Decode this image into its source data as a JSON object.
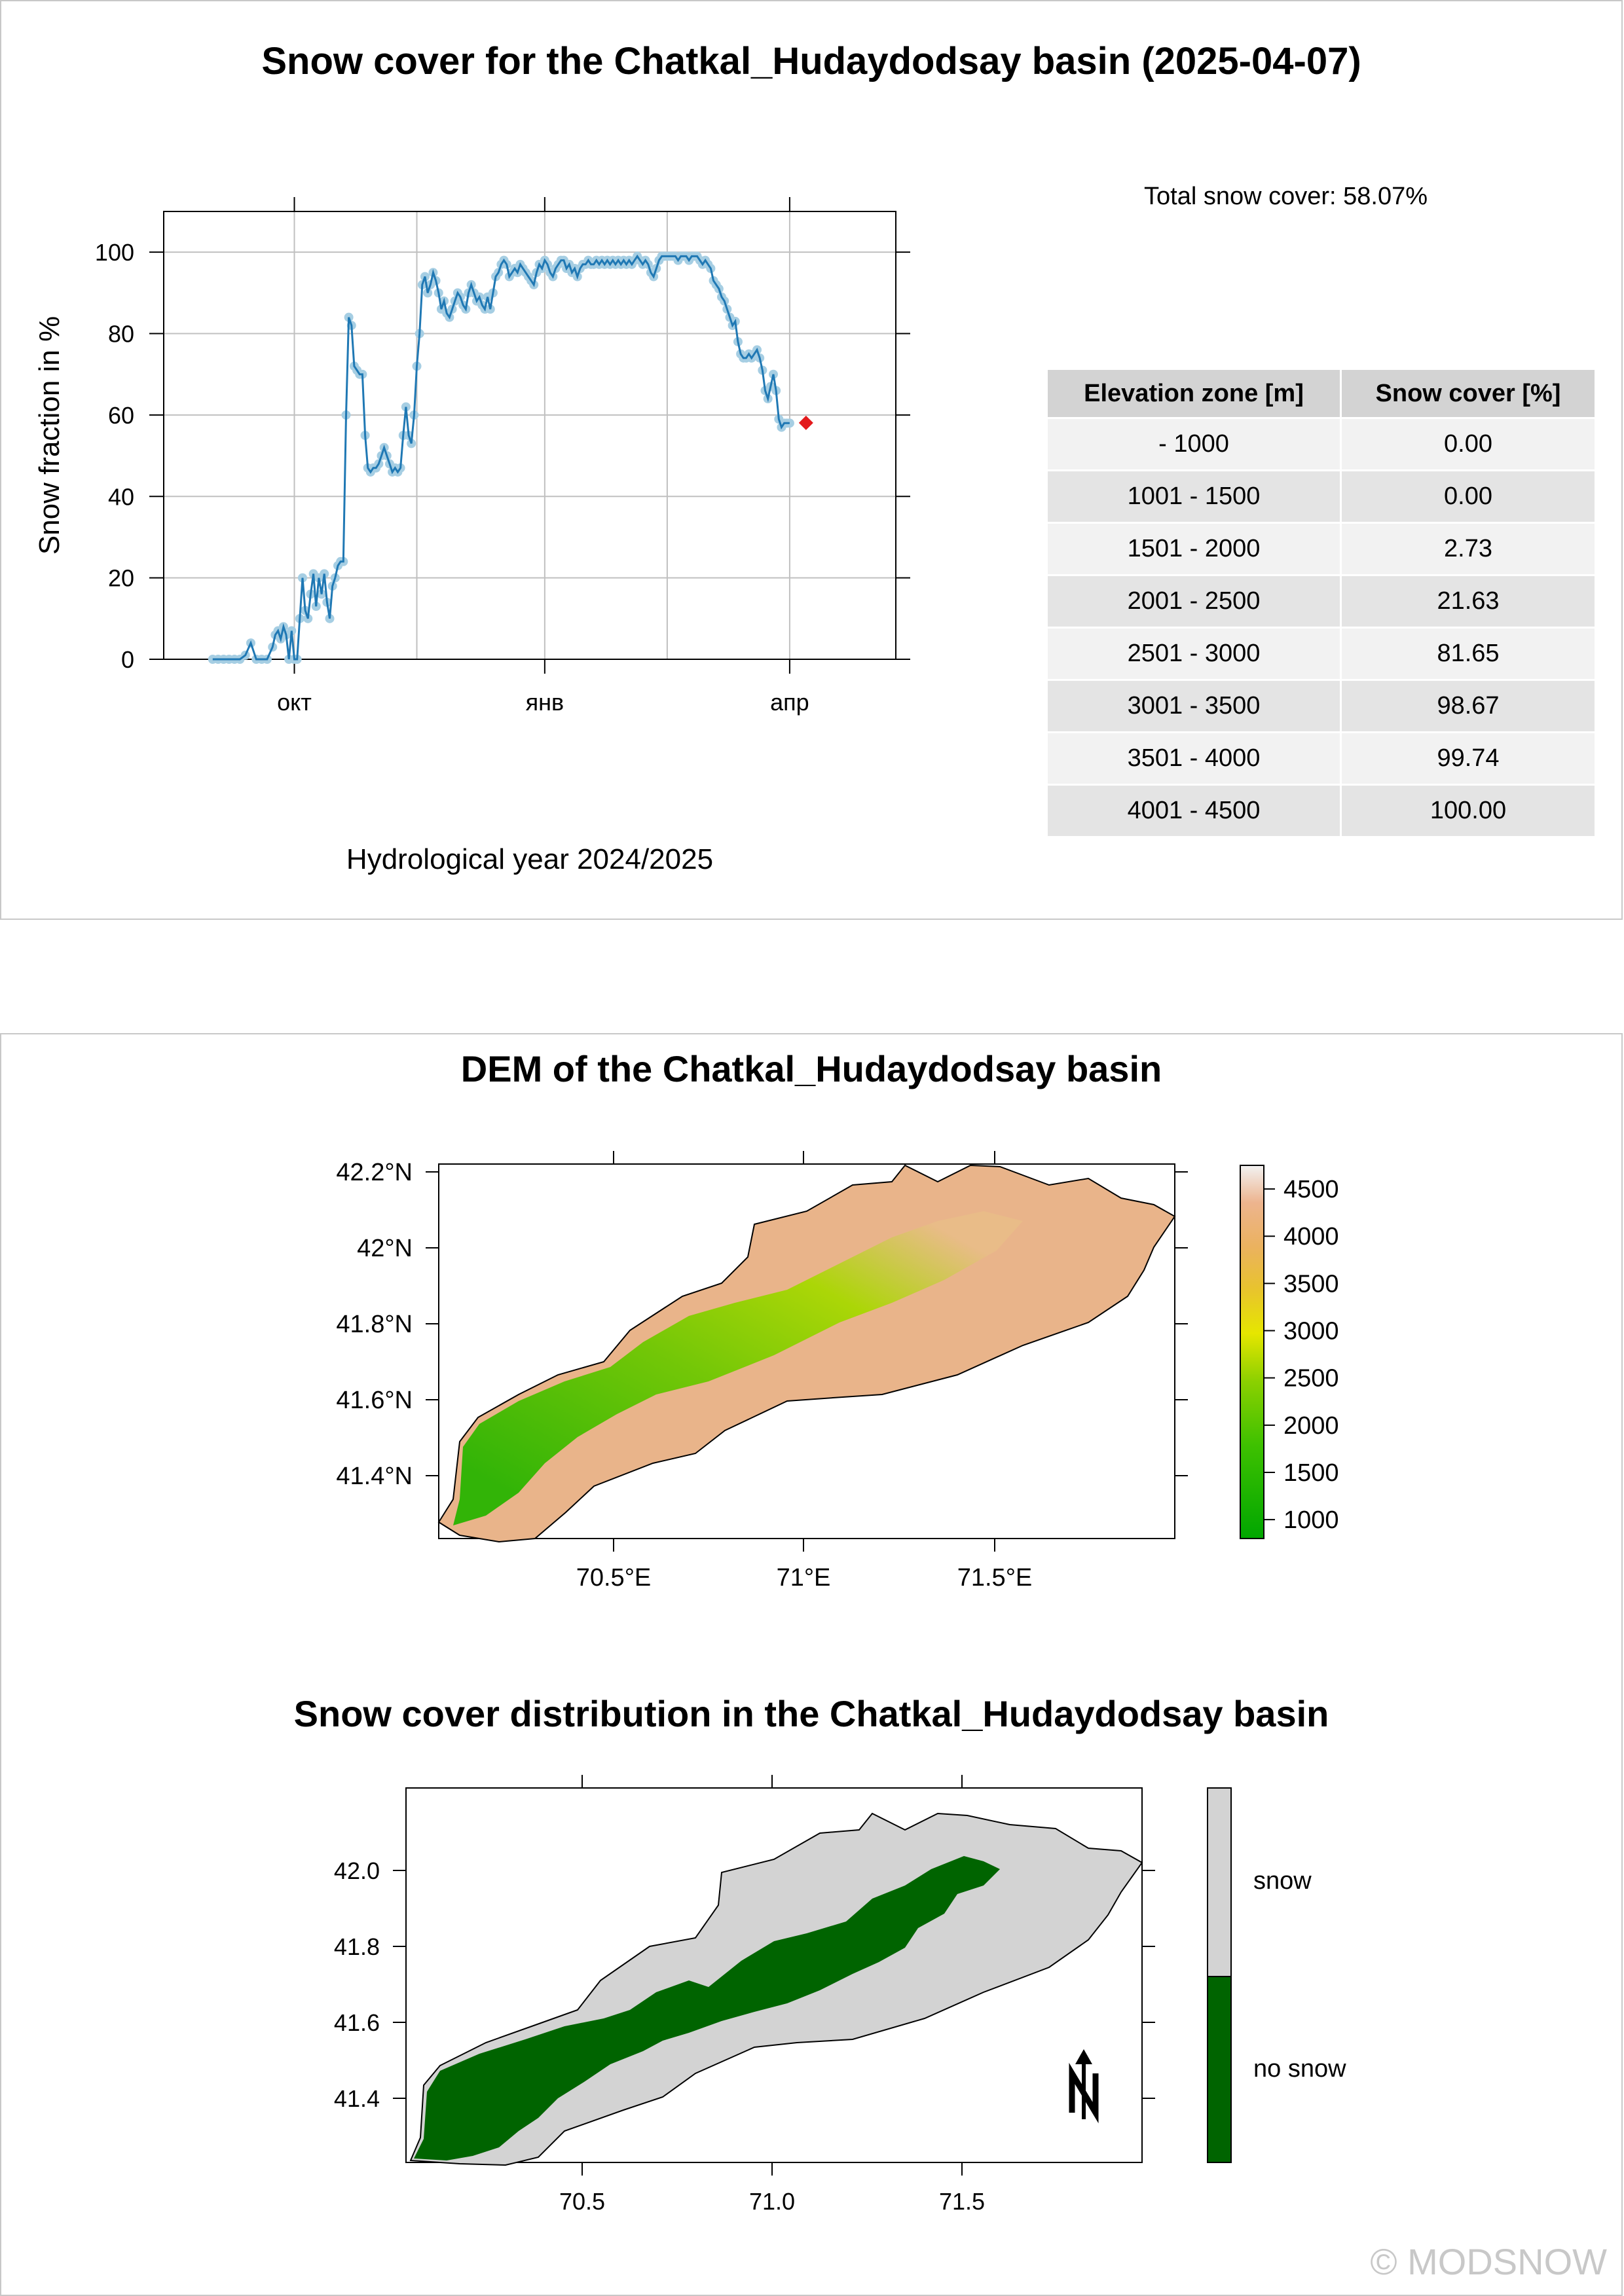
{
  "chart_data": {
    "type": "line",
    "title": "Snow cover for the Chatkal_Hudaydodsay basin (2025-04-07)",
    "xlabel": "Hydrological year 2024/2025",
    "ylabel": "Snow fraction in %",
    "x_tick_labels": [
      "окт",
      "янв",
      "апр"
    ],
    "x_tick_dates": [
      "2024-10-01",
      "2025-01-01",
      "2025-04-01"
    ],
    "y_ticks": [
      0,
      20,
      40,
      60,
      80,
      100
    ],
    "ylim": [
      0,
      110
    ],
    "xlim": [
      "2024-08-14",
      "2025-05-10"
    ],
    "grid": true,
    "line_color": "#1f78b4",
    "marker_color": "#a6cee3",
    "current_color": "#e31a1c",
    "series": [
      {
        "points": [
          [
            "2024-09-01",
            0
          ],
          [
            "2024-09-03",
            0
          ],
          [
            "2024-09-05",
            0
          ],
          [
            "2024-09-07",
            0
          ],
          [
            "2024-09-09",
            0
          ],
          [
            "2024-09-11",
            0
          ],
          [
            "2024-09-13",
            1
          ],
          [
            "2024-09-15",
            4
          ],
          [
            "2024-09-17",
            0
          ],
          [
            "2024-09-19",
            0
          ],
          [
            "2024-09-21",
            0
          ],
          [
            "2024-09-23",
            3
          ],
          [
            "2024-09-24",
            6
          ],
          [
            "2024-09-25",
            7
          ],
          [
            "2024-09-26",
            5
          ],
          [
            "2024-09-27",
            8
          ],
          [
            "2024-09-28",
            6
          ],
          [
            "2024-09-29",
            0
          ],
          [
            "2024-09-30",
            7
          ],
          [
            "2024-10-01",
            0
          ],
          [
            "2024-10-02",
            0
          ],
          [
            "2024-10-03",
            10
          ],
          [
            "2024-10-04",
            20
          ],
          [
            "2024-10-05",
            12
          ],
          [
            "2024-10-06",
            10
          ],
          [
            "2024-10-07",
            16
          ],
          [
            "2024-10-08",
            21
          ],
          [
            "2024-10-09",
            13
          ],
          [
            "2024-10-10",
            20
          ],
          [
            "2024-10-11",
            16
          ],
          [
            "2024-10-12",
            21
          ],
          [
            "2024-10-13",
            14
          ],
          [
            "2024-10-14",
            10
          ],
          [
            "2024-10-15",
            18
          ],
          [
            "2024-10-16",
            20
          ],
          [
            "2024-10-17",
            23
          ],
          [
            "2024-10-18",
            24
          ],
          [
            "2024-10-19",
            24
          ],
          [
            "2024-10-20",
            60
          ],
          [
            "2024-10-21",
            84
          ],
          [
            "2024-10-22",
            82
          ],
          [
            "2024-10-23",
            72
          ],
          [
            "2024-10-24",
            71
          ],
          [
            "2024-10-25",
            70
          ],
          [
            "2024-10-26",
            70
          ],
          [
            "2024-10-27",
            55
          ],
          [
            "2024-10-28",
            47
          ],
          [
            "2024-10-29",
            46
          ],
          [
            "2024-10-30",
            47
          ],
          [
            "2024-10-31",
            47
          ],
          [
            "2024-11-01",
            48
          ],
          [
            "2024-11-02",
            50
          ],
          [
            "2024-11-03",
            52
          ],
          [
            "2024-11-04",
            50
          ],
          [
            "2024-11-05",
            48
          ],
          [
            "2024-11-06",
            46
          ],
          [
            "2024-11-07",
            47
          ],
          [
            "2024-11-08",
            46
          ],
          [
            "2024-11-09",
            47
          ],
          [
            "2024-11-10",
            55
          ],
          [
            "2024-11-11",
            62
          ],
          [
            "2024-11-12",
            55
          ],
          [
            "2024-11-13",
            53
          ],
          [
            "2024-11-14",
            60
          ],
          [
            "2024-11-15",
            72
          ],
          [
            "2024-11-16",
            80
          ],
          [
            "2024-11-17",
            92
          ],
          [
            "2024-11-18",
            94
          ],
          [
            "2024-11-19",
            90
          ],
          [
            "2024-11-20",
            92
          ],
          [
            "2024-11-21",
            95
          ],
          [
            "2024-11-22",
            93
          ],
          [
            "2024-11-23",
            90
          ],
          [
            "2024-11-24",
            86
          ],
          [
            "2024-11-25",
            88
          ],
          [
            "2024-11-26",
            85
          ],
          [
            "2024-11-27",
            84
          ],
          [
            "2024-11-28",
            86
          ],
          [
            "2024-11-29",
            88
          ],
          [
            "2024-11-30",
            90
          ],
          [
            "2024-12-01",
            89
          ],
          [
            "2024-12-02",
            87
          ],
          [
            "2024-12-03",
            86
          ],
          [
            "2024-12-04",
            90
          ],
          [
            "2024-12-05",
            92
          ],
          [
            "2024-12-06",
            90
          ],
          [
            "2024-12-07",
            88
          ],
          [
            "2024-12-08",
            89
          ],
          [
            "2024-12-09",
            87
          ],
          [
            "2024-12-10",
            86
          ],
          [
            "2024-12-11",
            89
          ],
          [
            "2024-12-12",
            86
          ],
          [
            "2024-12-13",
            90
          ],
          [
            "2024-12-14",
            94
          ],
          [
            "2024-12-15",
            95
          ],
          [
            "2024-12-16",
            97
          ],
          [
            "2024-12-17",
            98
          ],
          [
            "2024-12-18",
            97
          ],
          [
            "2024-12-19",
            94
          ],
          [
            "2024-12-20",
            95
          ],
          [
            "2024-12-21",
            96
          ],
          [
            "2024-12-22",
            95
          ],
          [
            "2024-12-23",
            97
          ],
          [
            "2024-12-24",
            96
          ],
          [
            "2024-12-25",
            95
          ],
          [
            "2024-12-26",
            94
          ],
          [
            "2024-12-27",
            93
          ],
          [
            "2024-12-28",
            92
          ],
          [
            "2024-12-29",
            95
          ],
          [
            "2024-12-30",
            97
          ],
          [
            "2024-12-31",
            96
          ],
          [
            "2025-01-01",
            98
          ],
          [
            "2025-01-02",
            97
          ],
          [
            "2025-01-03",
            95
          ],
          [
            "2025-01-04",
            94
          ],
          [
            "2025-01-05",
            96
          ],
          [
            "2025-01-06",
            97
          ],
          [
            "2025-01-07",
            98
          ],
          [
            "2025-01-08",
            98
          ],
          [
            "2025-01-09",
            96
          ],
          [
            "2025-01-10",
            97
          ],
          [
            "2025-01-11",
            95
          ],
          [
            "2025-01-12",
            96
          ],
          [
            "2025-01-13",
            94
          ],
          [
            "2025-01-14",
            96
          ],
          [
            "2025-01-15",
            97
          ],
          [
            "2025-01-16",
            97
          ],
          [
            "2025-01-17",
            98
          ],
          [
            "2025-01-18",
            97
          ],
          [
            "2025-01-19",
            97
          ],
          [
            "2025-01-20",
            98
          ],
          [
            "2025-01-21",
            97
          ],
          [
            "2025-01-22",
            98
          ],
          [
            "2025-01-23",
            97
          ],
          [
            "2025-01-24",
            98
          ],
          [
            "2025-01-25",
            97
          ],
          [
            "2025-01-26",
            98
          ],
          [
            "2025-01-27",
            97
          ],
          [
            "2025-01-28",
            98
          ],
          [
            "2025-01-29",
            97
          ],
          [
            "2025-01-30",
            98
          ],
          [
            "2025-01-31",
            97
          ],
          [
            "2025-02-01",
            98
          ],
          [
            "2025-02-02",
            97
          ],
          [
            "2025-02-03",
            98
          ],
          [
            "2025-02-04",
            99
          ],
          [
            "2025-02-05",
            98
          ],
          [
            "2025-02-06",
            97
          ],
          [
            "2025-02-07",
            98
          ],
          [
            "2025-02-08",
            97
          ],
          [
            "2025-02-09",
            95
          ],
          [
            "2025-02-10",
            94
          ],
          [
            "2025-02-11",
            96
          ],
          [
            "2025-02-12",
            98
          ],
          [
            "2025-02-13",
            99
          ],
          [
            "2025-02-14",
            99
          ],
          [
            "2025-02-15",
            99
          ],
          [
            "2025-02-16",
            99
          ],
          [
            "2025-02-17",
            99
          ],
          [
            "2025-02-18",
            99
          ],
          [
            "2025-02-19",
            98
          ],
          [
            "2025-02-20",
            99
          ],
          [
            "2025-02-21",
            99
          ],
          [
            "2025-02-22",
            99
          ],
          [
            "2025-02-23",
            98
          ],
          [
            "2025-02-24",
            99
          ],
          [
            "2025-02-25",
            99
          ],
          [
            "2025-02-26",
            99
          ],
          [
            "2025-02-27",
            98
          ],
          [
            "2025-02-28",
            97
          ],
          [
            "2025-03-01",
            98
          ],
          [
            "2025-03-02",
            97
          ],
          [
            "2025-03-03",
            96
          ],
          [
            "2025-03-04",
            93
          ],
          [
            "2025-03-05",
            92
          ],
          [
            "2025-03-06",
            91
          ],
          [
            "2025-03-07",
            89
          ],
          [
            "2025-03-08",
            88
          ],
          [
            "2025-03-09",
            86
          ],
          [
            "2025-03-10",
            84
          ],
          [
            "2025-03-11",
            82
          ],
          [
            "2025-03-12",
            83
          ],
          [
            "2025-03-13",
            78
          ],
          [
            "2025-03-14",
            75
          ],
          [
            "2025-03-15",
            74
          ],
          [
            "2025-03-16",
            74
          ],
          [
            "2025-03-17",
            75
          ],
          [
            "2025-03-18",
            74
          ],
          [
            "2025-03-19",
            75
          ],
          [
            "2025-03-20",
            76
          ],
          [
            "2025-03-21",
            74
          ],
          [
            "2025-03-22",
            71
          ],
          [
            "2025-03-23",
            66
          ],
          [
            "2025-03-24",
            64
          ],
          [
            "2025-03-25",
            67
          ],
          [
            "2025-03-26",
            70
          ],
          [
            "2025-03-27",
            66
          ],
          [
            "2025-03-28",
            59
          ],
          [
            "2025-03-29",
            57
          ],
          [
            "2025-03-30",
            58
          ],
          [
            "2025-03-31",
            58
          ],
          [
            "2025-04-01",
            58
          ]
        ]
      }
    ],
    "current": {
      "x": "2025-04-07",
      "y": 58.07
    }
  },
  "summary": {
    "total_label": "Total snow cover: 58.07%"
  },
  "zones_table": {
    "header": [
      "Elevation zone [m]",
      "Snow cover [%]"
    ],
    "rows": [
      [
        "- 1000",
        "0.00"
      ],
      [
        "1001 - 1500",
        "0.00"
      ],
      [
        "1501 - 2000",
        "2.73"
      ],
      [
        "2001 - 2500",
        "21.63"
      ],
      [
        "2501 - 3000",
        "81.65"
      ],
      [
        "3001 - 3500",
        "98.67"
      ],
      [
        "3501 - 4000",
        "99.74"
      ],
      [
        "4001 - 4500",
        "100.00"
      ]
    ]
  },
  "dem_map": {
    "title": "DEM of the Chatkal_Hudaydodsay basin",
    "lat_ticks": [
      "42.2°N",
      "42°N",
      "41.8°N",
      "41.6°N",
      "41.4°N"
    ],
    "lon_ticks": [
      "70.5°E",
      "71°E",
      "71.5°E"
    ],
    "colorbar_ticks": [
      "4500",
      "4000",
      "3500",
      "3000",
      "2500",
      "2000",
      "1500",
      "1000"
    ],
    "colorbar_values": [
      4500,
      4000,
      3500,
      3000,
      2500,
      2000,
      1500,
      1000
    ],
    "colorbar_range": [
      800,
      4750
    ]
  },
  "snow_map": {
    "title": "Snow cover distribution in the Chatkal_Hudaydodsay basin",
    "lat_ticks": [
      "42.0",
      "41.8",
      "41.6",
      "41.4"
    ],
    "lon_ticks": [
      "70.5",
      "71.0",
      "71.5"
    ],
    "legend": [
      "snow",
      "no snow"
    ],
    "snow_color": "#d3d3d3",
    "no_snow_color": "#006400"
  },
  "copyright": "© MODSNOW"
}
